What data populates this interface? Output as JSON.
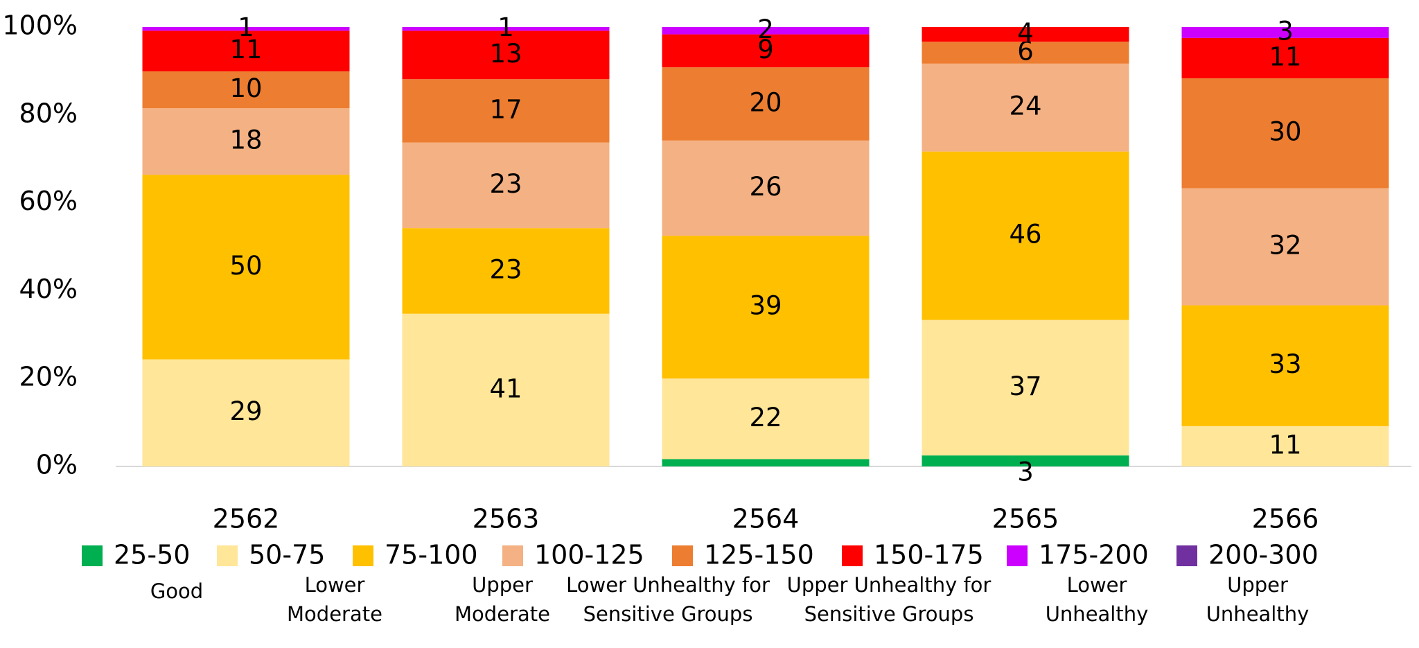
{
  "chart_data": {
    "type": "stacked_percent_bar",
    "categories": [
      "2562",
      "2563",
      "2564",
      "2565",
      "2566"
    ],
    "ylim": [
      0,
      100
    ],
    "yticks": [
      {
        "value": 0,
        "label": "0%"
      },
      {
        "value": 20,
        "label": "20%"
      },
      {
        "value": 40,
        "label": "40%"
      },
      {
        "value": 60,
        "label": "60%"
      },
      {
        "value": 80,
        "label": "80%"
      },
      {
        "value": 100,
        "label": "100%"
      }
    ],
    "series": [
      {
        "name": "25-50",
        "description": [
          "Good"
        ],
        "color": "#00b050",
        "values": [
          0,
          0,
          2,
          3,
          0
        ],
        "value_labels": [
          null,
          null,
          null,
          "3",
          null
        ]
      },
      {
        "name": "50-75",
        "description": [
          "Lower",
          "Moderate"
        ],
        "color": "#ffe699",
        "values": [
          29,
          41,
          22,
          37,
          11
        ],
        "value_labels": [
          "29",
          "41",
          "22",
          "37",
          "11"
        ]
      },
      {
        "name": "75-100",
        "description": [
          "Upper",
          "Moderate"
        ],
        "color": "#ffc000",
        "values": [
          50,
          23,
          39,
          46,
          33
        ],
        "value_labels": [
          "50",
          "23",
          "39",
          "46",
          "33"
        ]
      },
      {
        "name": "100-125",
        "description": [
          "Lower Unhealthy for",
          "Sensitive Groups"
        ],
        "color": "#f4b183",
        "values": [
          18,
          23,
          26,
          24,
          32
        ],
        "value_labels": [
          "18",
          "23",
          "26",
          "24",
          "32"
        ]
      },
      {
        "name": "125-150",
        "description": [
          "Upper Unhealthy for",
          "Sensitive Groups"
        ],
        "color": "#ed7d31",
        "values": [
          10,
          17,
          20,
          6,
          30
        ],
        "value_labels": [
          "10",
          "17",
          "20",
          "6",
          "30"
        ]
      },
      {
        "name": "150-175",
        "description": [
          "Lower",
          "Unhealthy"
        ],
        "color": "#ff0000",
        "values": [
          11,
          13,
          9,
          4,
          11
        ],
        "value_labels": [
          "11",
          "13",
          "9",
          "4",
          "11"
        ]
      },
      {
        "name": "175-200",
        "description": [
          "Upper",
          "Unhealthy"
        ],
        "color": "#cc00ff",
        "values": [
          1,
          1,
          2,
          0,
          3
        ],
        "value_labels": [
          "1",
          "1",
          "2",
          null,
          "3"
        ]
      },
      {
        "name": "200-300",
        "description": [],
        "color": "#7030a0",
        "values": [
          0,
          0,
          0,
          0,
          0
        ],
        "value_labels": [
          null,
          null,
          null,
          null,
          null
        ]
      }
    ]
  }
}
